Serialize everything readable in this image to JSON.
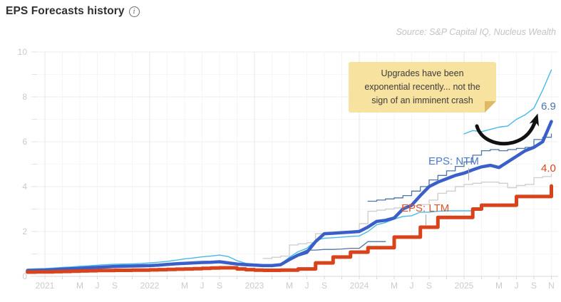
{
  "header": {
    "title": "EPS Forecasts history",
    "info_glyph": "i"
  },
  "source": {
    "text": "Source: S&P Capital IQ, Nucleus Wealth"
  },
  "annotation": {
    "text": "Upgrades have been exponential recently... not the sign of an imminent crash"
  },
  "chart_data": {
    "type": "line",
    "title": "EPS Forecasts history",
    "x_axis": {
      "tick_labels": [
        {
          "label": "2021",
          "t": 2021.0
        },
        {
          "label": "M",
          "t": 2021.3333
        },
        {
          "label": "J",
          "t": 2021.5
        },
        {
          "label": "S",
          "t": 2021.6667
        },
        {
          "label": "2022",
          "t": 2022.0
        },
        {
          "label": "M",
          "t": 2022.3333
        },
        {
          "label": "J",
          "t": 2022.5
        },
        {
          "label": "S",
          "t": 2022.6667
        },
        {
          "label": "2023",
          "t": 2023.0
        },
        {
          "label": "M",
          "t": 2023.3333
        },
        {
          "label": "J",
          "t": 2023.5
        },
        {
          "label": "S",
          "t": 2023.6667
        },
        {
          "label": "2024",
          "t": 2024.0
        },
        {
          "label": "M",
          "t": 2024.3333
        },
        {
          "label": "J",
          "t": 2024.5
        },
        {
          "label": "S",
          "t": 2024.6667
        },
        {
          "label": "2025",
          "t": 2025.0
        },
        {
          "label": "M",
          "t": 2025.3333
        },
        {
          "label": "J",
          "t": 2025.5
        },
        {
          "label": "S",
          "t": 2025.6667
        },
        {
          "label": "N",
          "t": 2025.8333
        }
      ]
    },
    "y_axis": {
      "range": [
        0,
        10
      ],
      "major_ticks": [
        0,
        2,
        4,
        6,
        8,
        10
      ],
      "minor_ticks": [
        1,
        3,
        5,
        7,
        9
      ]
    },
    "annotations": {
      "note": "Upgrades have been exponential recently... not the sign of an imminent crash",
      "ntm_label": "EPS: NTM",
      "ltm_label": "EPS: LTM",
      "ntm_last": "6.9",
      "ltm_last": "4.0"
    },
    "series": [
      {
        "name": "fy-forecast-gray",
        "color": "#cfcfcf",
        "width": 1.4,
        "step": true,
        "start": "2023-02",
        "monthly": [
          0.8,
          0.85,
          0.9,
          1.4,
          1.45,
          1.5,
          1.9,
          1.9,
          1.92,
          1.95,
          1.97,
          2.35,
          2.9,
          2.95,
          3.0,
          3.05,
          3.1,
          3.15,
          3.2,
          3.4,
          3.7,
          3.8,
          4.0,
          4.1,
          4.15,
          4.2,
          4.2,
          4.15,
          3.95,
          4.05,
          4.1,
          4.4,
          4.45,
          4.55
        ]
      },
      {
        "name": "fy-forecast-navy-early",
        "color": "#4e74a8",
        "width": 1.3,
        "step": false,
        "start": "2020-11",
        "monthly": [
          0.29,
          0.3,
          0.32,
          0.34,
          0.36,
          0.38,
          0.4,
          0.42,
          0.44,
          0.46,
          0.48,
          0.49,
          0.5,
          0.51,
          0.52,
          0.54,
          0.56,
          0.58,
          0.6,
          0.62,
          0.64,
          0.65,
          0.67,
          0.62,
          0.56,
          0.52,
          0.5,
          0.48,
          0.48,
          0.52,
          0.8,
          1.0,
          1.17,
          1.17,
          1.2,
          1.2,
          1.22,
          1.25,
          1.25,
          1.55,
          1.55,
          1.55
        ]
      },
      {
        "name": "fy-forecast-navy-late",
        "color": "#4e74a8",
        "width": 1.3,
        "step": true,
        "start": "2024-02",
        "monthly": [
          3.35,
          3.4,
          3.45,
          3.5,
          3.6,
          3.8,
          4.0,
          4.3,
          4.5,
          4.7,
          4.9,
          5.1,
          5.4,
          5.6,
          5.65,
          5.6,
          5.65,
          5.7,
          5.75,
          6.1,
          6.2,
          6.35
        ]
      },
      {
        "name": "fy-forecast-lightblue-early",
        "color": "#47b8e8",
        "width": 1.4,
        "step": false,
        "start": "2020-11",
        "monthly": [
          0.32,
          0.34,
          0.35,
          0.37,
          0.4,
          0.42,
          0.45,
          0.47,
          0.5,
          0.52,
          0.54,
          0.55,
          0.56,
          0.57,
          0.6,
          0.63,
          0.67,
          0.72,
          0.78,
          0.82,
          0.87,
          0.9,
          0.95,
          0.88,
          0.7,
          0.58,
          0.55,
          0.52,
          0.52,
          0.55,
          0.85,
          1.1,
          1.25,
          1.6,
          1.7,
          1.72,
          1.75,
          1.78,
          1.8,
          2.0,
          2.3,
          2.4,
          2.55,
          2.67,
          2.7,
          2.86,
          2.86,
          2.9,
          2.92,
          2.92,
          2.92,
          2.92
        ]
      },
      {
        "name": "fy-forecast-lightblue-late",
        "color": "#47b8e8",
        "width": 1.4,
        "step": false,
        "start": "2025-01",
        "monthly": [
          6.35,
          6.5,
          6.45,
          6.55,
          6.65,
          6.7,
          7.0,
          7.2,
          7.5,
          8.3,
          9.2
        ]
      },
      {
        "name": "EPS: NTM",
        "color": "#3a5fc8",
        "width": 4.5,
        "step": false,
        "start": "2020-11",
        "monthly": [
          0.26,
          0.27,
          0.28,
          0.3,
          0.32,
          0.34,
          0.36,
          0.38,
          0.4,
          0.42,
          0.44,
          0.45,
          0.46,
          0.47,
          0.48,
          0.5,
          0.53,
          0.56,
          0.58,
          0.6,
          0.62,
          0.63,
          0.65,
          0.6,
          0.55,
          0.52,
          0.5,
          0.48,
          0.48,
          0.52,
          0.75,
          0.95,
          1.07,
          1.55,
          1.9,
          1.92,
          1.95,
          1.97,
          2.0,
          2.2,
          2.45,
          2.5,
          2.6,
          3.0,
          3.17,
          3.6,
          4.0,
          4.2,
          4.35,
          4.5,
          4.6,
          4.75,
          4.88,
          4.95,
          4.85,
          5.1,
          5.35,
          5.6,
          5.75,
          6.0,
          6.9
        ],
        "end_label": "6.9"
      },
      {
        "name": "EPS: LTM",
        "color": "#d8431c",
        "width": 5,
        "step": true,
        "start": "2020-11",
        "monthly": [
          0.19,
          0.2,
          0.2,
          0.21,
          0.22,
          0.23,
          0.24,
          0.25,
          0.26,
          0.26,
          0.27,
          0.27,
          0.28,
          0.28,
          0.29,
          0.3,
          0.31,
          0.32,
          0.33,
          0.34,
          0.36,
          0.37,
          0.38,
          0.38,
          0.33,
          0.3,
          0.28,
          0.27,
          0.27,
          0.28,
          0.28,
          0.33,
          0.33,
          0.6,
          0.6,
          0.86,
          0.86,
          1.08,
          1.08,
          1.28,
          1.28,
          1.28,
          1.75,
          1.75,
          1.75,
          2.19,
          2.19,
          2.63,
          2.63,
          2.63,
          2.63,
          3.0,
          3.17,
          3.17,
          3.17,
          3.17,
          3.56,
          3.56,
          3.56,
          3.56,
          4.03
        ],
        "end_label": "4.0"
      }
    ],
    "layout_hints": {
      "grid": "on",
      "legend": "inline-labels",
      "x_range": [
        "2020-11",
        "2025-11"
      ]
    }
  },
  "colors": {
    "ntm_line": "#3a5fc8",
    "ltm_line": "#d8431c",
    "light_blue_line": "#47b8e8",
    "navy_line": "#4e74a8",
    "gray_line": "#cfcfcf",
    "note_bg": "#f8e2a0",
    "axis_text": "#cbcbcb",
    "arrow": "#111111"
  }
}
